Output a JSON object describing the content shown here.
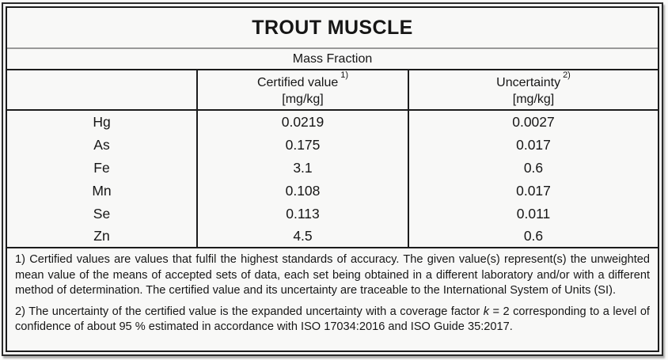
{
  "title": "TROUT MUSCLE",
  "subtitle": "Mass Fraction",
  "table": {
    "columns": [
      {
        "label": "Certified value",
        "sup": "1)",
        "unit": "[mg/kg]"
      },
      {
        "label": "Uncertainty",
        "sup": "2)",
        "unit": "[mg/kg]"
      }
    ],
    "rows": [
      {
        "element": "Hg",
        "certified_value": "0.0219",
        "uncertainty": "0.0027"
      },
      {
        "element": "As",
        "certified_value": "0.175",
        "uncertainty": "0.017"
      },
      {
        "element": "Fe",
        "certified_value": "3.1",
        "uncertainty": "0.6"
      },
      {
        "element": "Mn",
        "certified_value": "0.108",
        "uncertainty": "0.017"
      },
      {
        "element": "Se",
        "certified_value": "0.113",
        "uncertainty": "0.011"
      },
      {
        "element": "Zn",
        "certified_value": "4.5",
        "uncertainty": "0.6"
      }
    ]
  },
  "footnotes": {
    "note1": "1) Certified values are values that fulfil the highest standards of accuracy. The given value(s) represent(s) the unweighted mean value of the means of accepted sets of data, each set being obtained in a different laboratory and/or with a different method of determination. The certified value and its uncertainty are traceable to the International System of Units (SI).",
    "note2_prefix": "2) The uncertainty of the certified value is the expanded uncertainty with a coverage factor ",
    "note2_k": "k",
    "note2_suffix": " = 2 corresponding to a level of confidence of about 95 % estimated in accordance with ISO 17034:2016 and ISO Guide 35:2017."
  },
  "colors": {
    "frame_border": "#1c1c1c",
    "title_divider_gray": "#999999",
    "background": "#f8f8f7",
    "text": "#161616"
  }
}
